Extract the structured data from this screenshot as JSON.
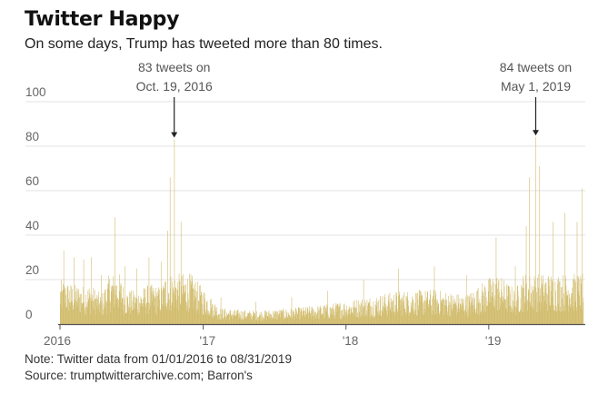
{
  "header": {
    "title": "Twitter Happy",
    "subtitle": "On some days, Trump has tweeted more than 80 times."
  },
  "footer": {
    "note": "Note: Twitter data from 01/01/2016 to 08/31/2019",
    "source": "Source: trumptwitterarchive.com; Barron's"
  },
  "colors": {
    "bar": "#d2bd6e",
    "grid": "#e3e3e3",
    "axis": "#555555",
    "text": "#666666"
  },
  "chart_data": {
    "type": "bar",
    "title": "Twitter Happy",
    "subtitle": "On some days, Trump has tweeted more than 80 times.",
    "xlabel": "",
    "ylabel": "",
    "ylim": [
      0,
      100
    ],
    "yticks": [
      "0",
      "20",
      "40",
      "60",
      "80",
      "100"
    ],
    "xticks": [
      {
        "date": "2016-01-01",
        "label": "2016"
      },
      {
        "date": "2017-01-01",
        "label": "'17"
      },
      {
        "date": "2018-01-01",
        "label": "'18"
      },
      {
        "date": "2019-01-01",
        "label": "'19"
      }
    ],
    "x_range": [
      "2016-01-01",
      "2019-08-31"
    ],
    "grid": true,
    "series": [
      {
        "frequency": "daily",
        "points": [
          [
            "2016-01-10",
            33
          ],
          [
            "2016-02-05",
            30
          ],
          [
            "2016-03-01",
            29
          ],
          [
            "2016-03-20",
            30
          ],
          [
            "2016-04-15",
            22
          ],
          [
            "2016-05-20",
            48
          ],
          [
            "2016-06-15",
            26
          ],
          [
            "2016-07-15",
            25
          ],
          [
            "2016-08-15",
            30
          ],
          [
            "2016-09-15",
            28
          ],
          [
            "2016-10-02",
            42
          ],
          [
            "2016-10-08",
            66
          ],
          [
            "2016-10-19",
            83
          ],
          [
            "2016-11-05",
            46
          ],
          [
            "2017-02-15",
            12
          ],
          [
            "2017-05-15",
            10
          ],
          [
            "2017-08-15",
            12
          ],
          [
            "2017-11-15",
            15
          ],
          [
            "2018-02-15",
            20
          ],
          [
            "2018-05-15",
            25
          ],
          [
            "2018-08-15",
            26
          ],
          [
            "2018-11-05",
            22
          ],
          [
            "2019-01-20",
            39
          ],
          [
            "2019-03-10",
            26
          ],
          [
            "2019-04-07",
            44
          ],
          [
            "2019-04-15",
            66
          ],
          [
            "2019-05-01",
            84
          ],
          [
            "2019-05-10",
            71
          ],
          [
            "2019-06-15",
            46
          ],
          [
            "2019-07-15",
            50
          ],
          [
            "2019-08-15",
            46
          ],
          [
            "2019-08-28",
            61
          ]
        ]
      }
    ],
    "annotations": [
      {
        "date": "2016-10-19",
        "value": 83,
        "line1": "83 tweets on",
        "line2": "Oct. 19, 2016"
      },
      {
        "date": "2019-05-01",
        "value": 84,
        "line1": "84 tweets on",
        "line2": "May 1, 2019"
      }
    ]
  }
}
